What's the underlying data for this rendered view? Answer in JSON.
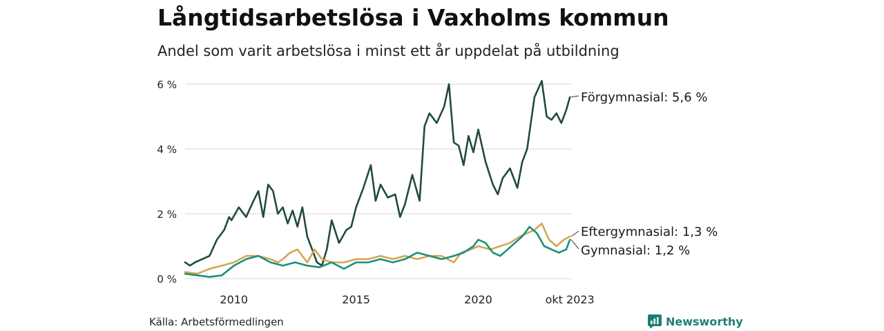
{
  "title": "Långtidsarbetslösa i Vaxholms kommun",
  "subtitle": "Andel som varit arbetslösa i minst ett år uppdelat på utbildning",
  "source": "Källa: Arbetsförmedlingen",
  "brand": "Newsworthy",
  "colors": {
    "forgymnasial": "#1f4a41",
    "eftergymnasial": "#d4a650",
    "gymnasial": "#1a8f7a",
    "grid": "#dddddd",
    "brand": "#1f7f72"
  },
  "chart_data": {
    "type": "line",
    "title": "Långtidsarbetslösa i Vaxholms kommun",
    "subtitle": "Andel som varit arbetslösa i minst ett år uppdelat på utbildning",
    "xlabel": "",
    "ylabel": "",
    "xlim": [
      2008.0,
      2023.83
    ],
    "ylim": [
      0,
      6
    ],
    "yticks": [
      0,
      2,
      4,
      6
    ],
    "ytick_labels": [
      "0 %",
      "2 %",
      "4 %",
      "6 %"
    ],
    "xticks": [
      2010,
      2015,
      2020,
      2023.75
    ],
    "xtick_labels": [
      "2010",
      "2015",
      "2020",
      "okt 2023"
    ],
    "grid": true,
    "series": [
      {
        "key": "forgymnasial",
        "name": "Förgymnasial",
        "end_label": "Förgymnasial: 5,6 %",
        "x": [
          2008.0,
          2008.2,
          2008.4,
          2008.7,
          2009.0,
          2009.3,
          2009.6,
          2009.8,
          2009.9,
          2010.2,
          2010.5,
          2010.8,
          2011.0,
          2011.2,
          2011.4,
          2011.6,
          2011.8,
          2012.0,
          2012.2,
          2012.4,
          2012.6,
          2012.8,
          2013.0,
          2013.2,
          2013.4,
          2013.6,
          2013.8,
          2014.0,
          2014.3,
          2014.6,
          2014.8,
          2015.0,
          2015.3,
          2015.6,
          2015.8,
          2016.0,
          2016.3,
          2016.6,
          2016.8,
          2017.0,
          2017.3,
          2017.6,
          2017.8,
          2018.0,
          2018.3,
          2018.6,
          2018.8,
          2019.0,
          2019.2,
          2019.4,
          2019.6,
          2019.8,
          2020.0,
          2020.3,
          2020.6,
          2020.8,
          2021.0,
          2021.3,
          2021.6,
          2021.8,
          2022.0,
          2022.3,
          2022.6,
          2022.8,
          2023.0,
          2023.2,
          2023.4,
          2023.6,
          2023.75
        ],
        "values": [
          0.5,
          0.4,
          0.5,
          0.6,
          0.7,
          1.2,
          1.5,
          1.9,
          1.8,
          2.2,
          1.9,
          2.4,
          2.7,
          1.9,
          2.9,
          2.7,
          2.0,
          2.2,
          1.7,
          2.1,
          1.6,
          2.2,
          1.3,
          0.9,
          0.5,
          0.4,
          0.9,
          1.8,
          1.1,
          1.5,
          1.6,
          2.2,
          2.8,
          3.5,
          2.4,
          2.9,
          2.5,
          2.6,
          1.9,
          2.3,
          3.2,
          2.4,
          4.7,
          5.1,
          4.8,
          5.3,
          6.0,
          4.2,
          4.1,
          3.5,
          4.4,
          3.9,
          4.6,
          3.6,
          2.9,
          2.6,
          3.1,
          3.4,
          2.8,
          3.6,
          4.0,
          5.6,
          6.1,
          5.0,
          4.9,
          5.1,
          4.8,
          5.2,
          5.6
        ]
      },
      {
        "key": "eftergymnasial",
        "name": "Eftergymnasial",
        "end_label": "Eftergymnasial: 1,3 %",
        "x": [
          2008.0,
          2008.5,
          2009.0,
          2009.5,
          2010.0,
          2010.5,
          2011.0,
          2011.5,
          2011.8,
          2012.0,
          2012.3,
          2012.6,
          2013.0,
          2013.3,
          2013.6,
          2014.0,
          2014.5,
          2015.0,
          2015.5,
          2016.0,
          2016.5,
          2017.0,
          2017.5,
          2018.0,
          2018.5,
          2019.0,
          2019.3,
          2019.7,
          2020.0,
          2020.5,
          2020.9,
          2021.3,
          2021.7,
          2022.0,
          2022.3,
          2022.6,
          2022.9,
          2023.2,
          2023.5,
          2023.75
        ],
        "values": [
          0.2,
          0.15,
          0.3,
          0.4,
          0.5,
          0.7,
          0.7,
          0.6,
          0.5,
          0.6,
          0.8,
          0.9,
          0.5,
          0.9,
          0.6,
          0.5,
          0.5,
          0.6,
          0.6,
          0.7,
          0.6,
          0.7,
          0.6,
          0.7,
          0.7,
          0.5,
          0.8,
          0.9,
          1.0,
          0.9,
          1.0,
          1.1,
          1.3,
          1.4,
          1.5,
          1.7,
          1.2,
          1.0,
          1.2,
          1.3
        ]
      },
      {
        "key": "gymnasial",
        "name": "Gymnasial",
        "end_label": "Gymnasial: 1,2 %",
        "x": [
          2008.0,
          2008.5,
          2009.0,
          2009.5,
          2010.0,
          2010.5,
          2011.0,
          2011.5,
          2012.0,
          2012.5,
          2013.0,
          2013.5,
          2014.0,
          2014.5,
          2015.0,
          2015.5,
          2016.0,
          2016.5,
          2017.0,
          2017.5,
          2018.0,
          2018.5,
          2019.0,
          2019.4,
          2019.8,
          2020.0,
          2020.3,
          2020.6,
          2020.9,
          2021.2,
          2021.5,
          2021.8,
          2022.1,
          2022.4,
          2022.7,
          2023.0,
          2023.3,
          2023.6,
          2023.75
        ],
        "values": [
          0.15,
          0.1,
          0.05,
          0.1,
          0.4,
          0.6,
          0.7,
          0.5,
          0.4,
          0.5,
          0.4,
          0.35,
          0.5,
          0.3,
          0.5,
          0.5,
          0.6,
          0.5,
          0.6,
          0.8,
          0.7,
          0.6,
          0.7,
          0.8,
          1.0,
          1.2,
          1.1,
          0.8,
          0.7,
          0.9,
          1.1,
          1.3,
          1.6,
          1.4,
          1.0,
          0.9,
          0.8,
          0.9,
          1.2
        ]
      }
    ]
  }
}
